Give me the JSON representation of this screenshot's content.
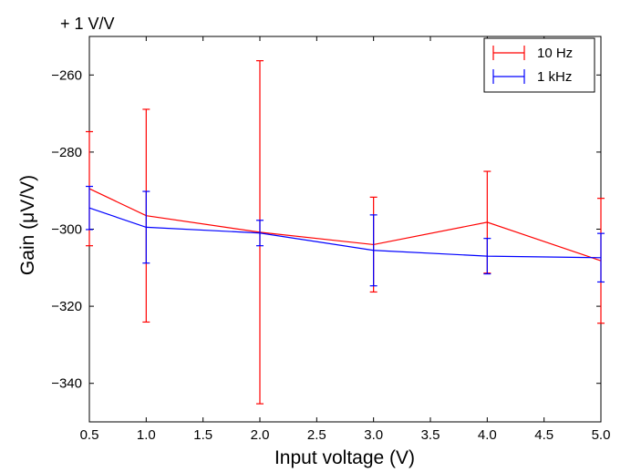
{
  "chart_data": {
    "type": "line",
    "offset_label": "+ 1 V/V",
    "xlabel": "Input voltage (V)",
    "ylabel": "Gain (μV/V)",
    "xlim": [
      0.5,
      5.0
    ],
    "ylim": [
      -350,
      -250
    ],
    "xticks": [
      0.5,
      1.0,
      1.5,
      2.0,
      2.5,
      3.0,
      3.5,
      4.0,
      4.5,
      5.0
    ],
    "xtick_labels": [
      "0.5",
      "1.0",
      "1.5",
      "2.0",
      "2.5",
      "3.0",
      "3.5",
      "4.0",
      "4.5",
      "5.0"
    ],
    "yticks": [
      -260,
      -280,
      -300,
      -320,
      -340
    ],
    "ytick_labels": [
      "−260",
      "−280",
      "−300",
      "−320",
      "−340"
    ],
    "grid": false,
    "legend_position": "top-right",
    "series": [
      {
        "name": "10 Hz",
        "color": "#ff0000",
        "x": [
          0.5,
          1.0,
          2.0,
          3.0,
          4.0,
          5.0
        ],
        "y": [
          -289.5,
          -296.5,
          -300.8,
          -304.0,
          -298.2,
          -308.2
        ],
        "yerr": [
          14.8,
          27.6,
          44.5,
          12.3,
          13.2,
          16.2
        ]
      },
      {
        "name": "1 kHz",
        "color": "#0000ff",
        "x": [
          0.5,
          1.0,
          2.0,
          3.0,
          4.0,
          5.0
        ],
        "y": [
          -294.5,
          -299.5,
          -301.0,
          -305.5,
          -307.0,
          -307.4
        ],
        "yerr": [
          5.6,
          9.3,
          3.3,
          9.2,
          4.6,
          6.3
        ]
      }
    ]
  }
}
